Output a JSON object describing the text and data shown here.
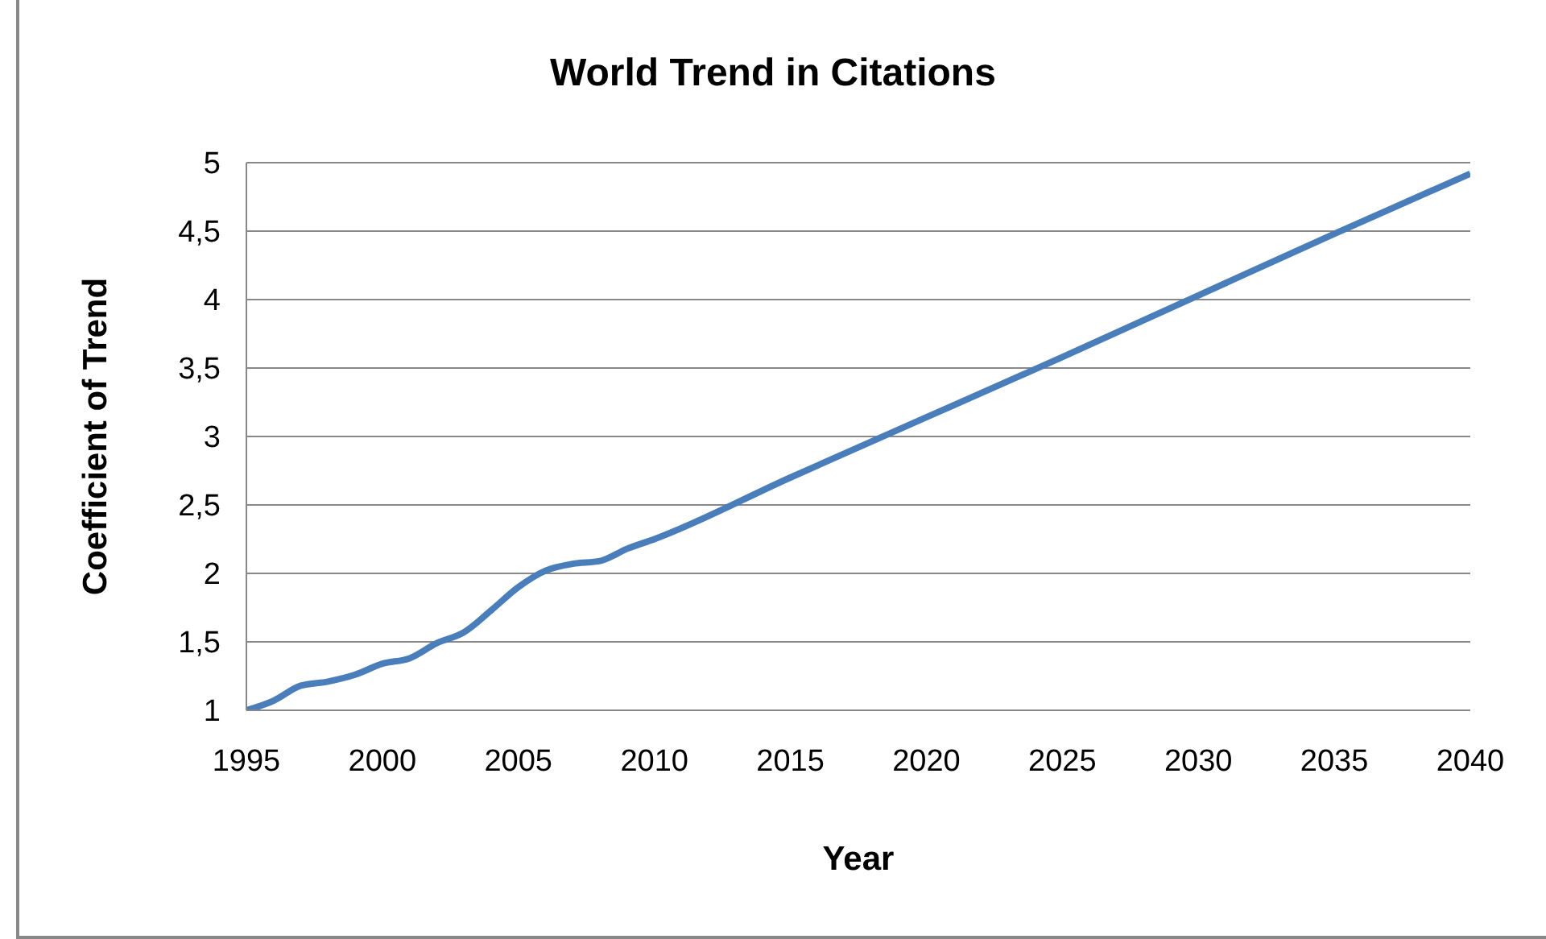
{
  "chart_data": {
    "type": "line",
    "title": "World Trend in Citations",
    "xlabel": "Year",
    "ylabel": "Coefficient of Trend",
    "x": [
      1995,
      1996,
      1997,
      1998,
      1999,
      2000,
      2001,
      2002,
      2003,
      2004,
      2005,
      2006,
      2007,
      2008,
      2009,
      2010,
      2015,
      2020,
      2025,
      2030,
      2035,
      2040
    ],
    "series": [
      {
        "color": "#4a7ebb",
        "values": [
          1.0,
          1.07,
          1.18,
          1.21,
          1.26,
          1.34,
          1.38,
          1.49,
          1.57,
          1.73,
          1.9,
          2.02,
          2.07,
          2.09,
          2.18,
          2.25,
          2.7,
          3.14,
          3.58,
          4.03,
          4.48,
          4.92
        ]
      }
    ],
    "xlim": [
      1995,
      2040
    ],
    "xticks": [
      1995,
      2000,
      2005,
      2010,
      2015,
      2020,
      2025,
      2030,
      2035,
      2040
    ],
    "ylim": [
      1,
      5
    ],
    "yticks": [
      1,
      {
        "value": 1.5,
        "label": "1,5"
      },
      2,
      {
        "value": 2.5,
        "label": "2,5"
      },
      3,
      {
        "value": 3.5,
        "label": "3,5"
      },
      4,
      {
        "value": 4.5,
        "label": "4,5"
      },
      5
    ],
    "grid": "y",
    "marker": "none",
    "line_style": "solid"
  }
}
